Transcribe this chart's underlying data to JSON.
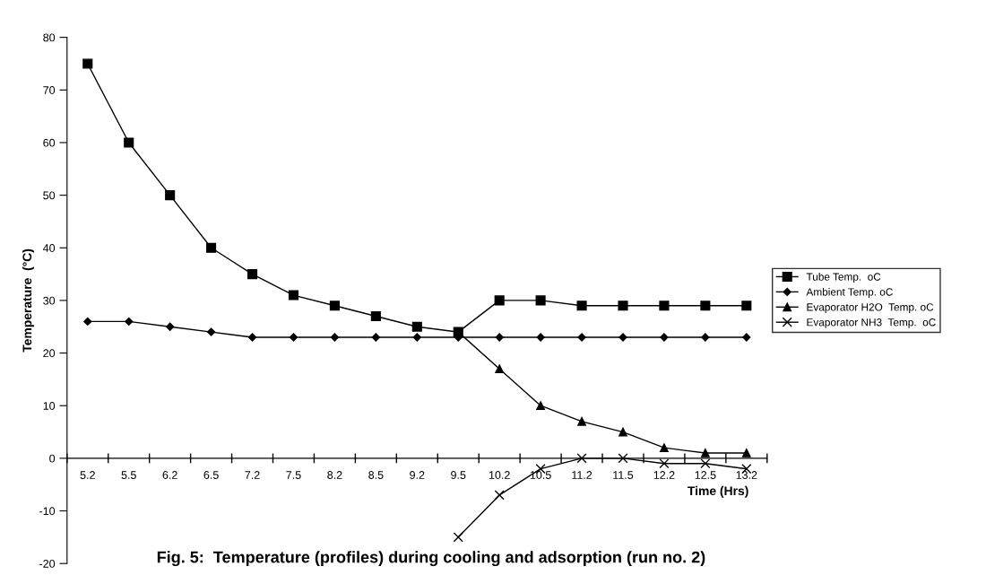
{
  "chart_data": {
    "type": "line",
    "title": "Fig. 5:  Temperature (profiles) during cooling and adsorption (run no. 2)",
    "xlabel": "Time (Hrs)",
    "ylabel": "Temperature  (°C)",
    "categories": [
      "5.2",
      "5.5",
      "6.2",
      "6.5",
      "7.2",
      "7.5",
      "8.2",
      "8.5",
      "9.2",
      "9.5",
      "10.2",
      "10.5",
      "11.2",
      "11.5",
      "12.2",
      "12.5",
      "13.2"
    ],
    "series": [
      {
        "name": "Tube Temp.  oC",
        "color": "#000000",
        "marker": "square",
        "values": [
          75,
          60,
          50,
          40,
          35,
          31,
          29,
          27,
          25,
          24,
          30,
          30,
          29,
          29,
          29,
          29,
          29
        ]
      },
      {
        "name": "Ambient Temp. oC",
        "color": "#000000",
        "marker": "diamond",
        "values": [
          26,
          26,
          25,
          24,
          23,
          23,
          23,
          23,
          23,
          23,
          23,
          23,
          23,
          23,
          23,
          23,
          23
        ]
      },
      {
        "name": "Evaporator H2O  Temp. oC",
        "color": "#000000",
        "marker": "triangle",
        "values": [
          null,
          null,
          null,
          null,
          null,
          null,
          null,
          null,
          null,
          24,
          17,
          10,
          7,
          5,
          2,
          1,
          1
        ]
      },
      {
        "name": "Evaporator NH3  Temp.  oC",
        "color": "#000000",
        "marker": "cross",
        "values": [
          null,
          null,
          null,
          null,
          null,
          null,
          null,
          null,
          null,
          -15,
          -7,
          -2,
          0,
          0,
          -1,
          -1,
          -2
        ]
      }
    ],
    "ylim": [
      -20,
      80
    ],
    "yticks": [
      -20,
      -10,
      0,
      10,
      20,
      30,
      40,
      50,
      60,
      70,
      80
    ],
    "grid": false,
    "legend": "right",
    "line_style": "solid"
  }
}
